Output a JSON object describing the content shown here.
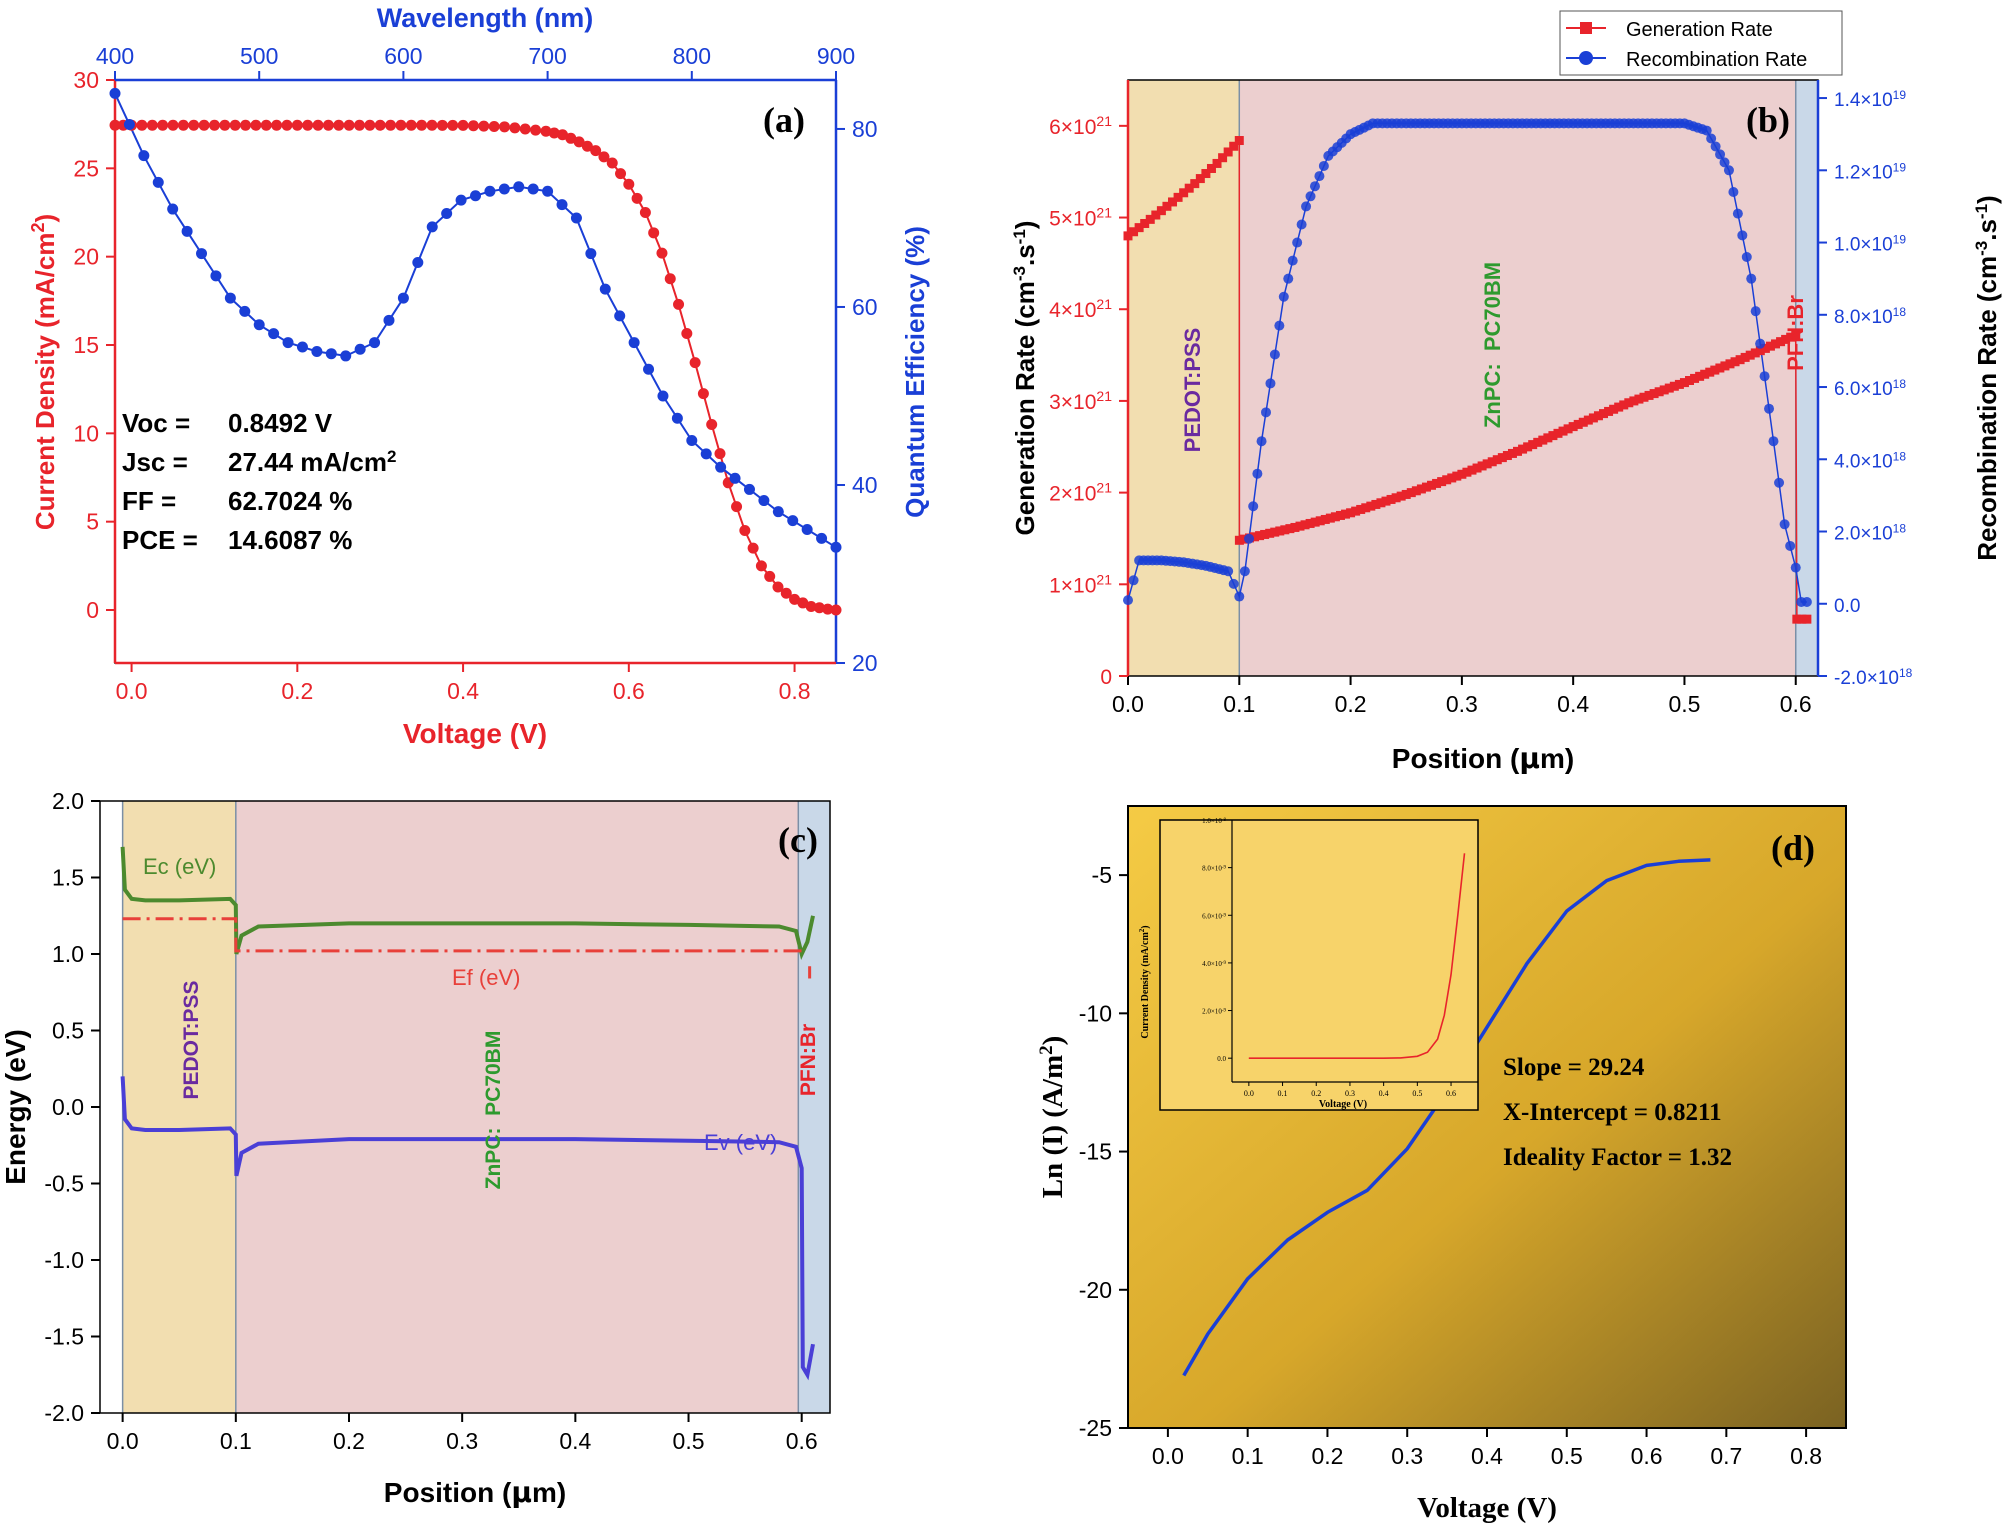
{
  "chart_data": [
    {
      "panel": "(a)",
      "type": "scatter",
      "xlabel": "Voltage (V)",
      "ylabel_left": "Current Density (mA/cm2)",
      "ylabel_right": "Quantum Efficiency (%)",
      "xlabel_top": "Wavelength (nm)",
      "xlim": [
        -0.02,
        0.85
      ],
      "ylim": [
        -3,
        30
      ],
      "ylim_right": [
        20,
        85.5
      ],
      "xlim_top": [
        400,
        900
      ],
      "x_ticks": [
        "0.0",
        "0.2",
        "0.4",
        "0.6",
        "0.8"
      ],
      "y_ticks": [
        "0",
        "5",
        "10",
        "15",
        "20",
        "25",
        "30"
      ],
      "y_right_ticks": [
        "20",
        "40",
        "60",
        "80"
      ],
      "x_top_ticks": [
        "400",
        "500",
        "600",
        "700",
        "800",
        "900"
      ],
      "colors": {
        "jv": "#e8242b",
        "qe": "#1a3fd6",
        "left_axis": "#e8242b",
        "right_axis": "#1a3fd6",
        "top_axis": "#1a3fd6"
      },
      "series": [
        {
          "name": "J-V",
          "axis": "bottom-left",
          "x": [
            -0.02,
            0.0,
            0.05,
            0.1,
            0.15,
            0.2,
            0.25,
            0.3,
            0.35,
            0.4,
            0.45,
            0.5,
            0.52,
            0.54,
            0.56,
            0.58,
            0.6,
            0.62,
            0.64,
            0.66,
            0.68,
            0.7,
            0.72,
            0.74,
            0.76,
            0.78,
            0.8,
            0.82,
            0.84,
            0.85
          ],
          "y": [
            27.44,
            27.44,
            27.44,
            27.44,
            27.44,
            27.44,
            27.44,
            27.44,
            27.44,
            27.43,
            27.35,
            27.1,
            26.9,
            26.5,
            26.0,
            25.3,
            24.1,
            22.5,
            20.2,
            17.3,
            14.0,
            10.5,
            7.2,
            4.5,
            2.5,
            1.3,
            0.6,
            0.2,
            0.05,
            0.0
          ]
        },
        {
          "name": "Quantum Efficiency",
          "axis": "top-right",
          "x": [
            400,
            420,
            440,
            460,
            480,
            500,
            520,
            540,
            560,
            580,
            600,
            620,
            640,
            660,
            680,
            700,
            720,
            740,
            760,
            780,
            800,
            820,
            840,
            860,
            880,
            900
          ],
          "y": [
            84,
            77,
            71,
            66,
            61,
            58,
            56,
            55,
            54.5,
            56,
            61,
            69,
            72,
            73,
            73.5,
            73,
            70,
            62,
            56,
            50,
            45,
            42,
            39.5,
            37,
            35,
            33
          ]
        }
      ],
      "annotations": [
        {
          "label": "Voc =",
          "value": "0.8492 V"
        },
        {
          "label": "Jsc =",
          "value": "27.44 mA/cm",
          "sup": "2"
        },
        {
          "label": "FF =",
          "value": "62.7024 %"
        },
        {
          "label": "PCE =",
          "value": "14.6087 %"
        }
      ]
    },
    {
      "panel": "(b)",
      "type": "scatter",
      "xlabel": "Position (μm)",
      "ylabel_left": "Generation Rate (cm-3.s-1)",
      "ylabel_right": "Recombination Rate (cm-3.s-1)",
      "xlim": [
        0.0,
        0.62
      ],
      "ylim": [
        0,
        6.5e+21
      ],
      "ylim_right": [
        -2e+18,
        1.45e+19
      ],
      "x_ticks": [
        "0.0",
        "0.1",
        "0.2",
        "0.3",
        "0.4",
        "0.5",
        "0.6"
      ],
      "y_ticks": [
        {
          "m": "0",
          "e": ""
        },
        {
          "m": "1×10",
          "e": "21"
        },
        {
          "m": "2×10",
          "e": "21"
        },
        {
          "m": "3×10",
          "e": "21"
        },
        {
          "m": "4×10",
          "e": "21"
        },
        {
          "m": "5×10",
          "e": "21"
        },
        {
          "m": "6×10",
          "e": "21"
        }
      ],
      "y_right_ticks": [
        {
          "m": "-2.0×10",
          "e": "18"
        },
        {
          "m": "0.0",
          "e": ""
        },
        {
          "m": "2.0×10",
          "e": "18"
        },
        {
          "m": "4.0×10",
          "e": "18"
        },
        {
          "m": "6.0×10",
          "e": "18"
        },
        {
          "m": "8.0×10",
          "e": "18"
        },
        {
          "m": "1.0×10",
          "e": "19"
        },
        {
          "m": "1.2×10",
          "e": "19"
        },
        {
          "m": "1.4×10",
          "e": "19"
        }
      ],
      "legend": [
        "Generation Rate",
        "Recombination Rate"
      ],
      "legend_position": "top-right",
      "layers": [
        "PEDOT:PSS",
        "ZnPC:  PC70BM",
        "PFN:Br"
      ],
      "colors": {
        "generation": "#e8242b",
        "recombination": "#1a3fd6",
        "pedot": "#f2deb0",
        "active": "#eccfcf",
        "pfn": "#c9d8e8",
        "left_axis": "#e8242b",
        "right_axis": "#1a3fd6"
      },
      "series": [
        {
          "name": "Generation Rate",
          "axis": "left",
          "x": [
            0.0,
            0.02,
            0.04,
            0.06,
            0.08,
            0.1,
            0.1001,
            0.15,
            0.2,
            0.25,
            0.3,
            0.35,
            0.4,
            0.45,
            0.5,
            0.55,
            0.6,
            0.601,
            0.61
          ],
          "y": [
            4.8e+21,
            4.98e+21,
            5.17e+21,
            5.37e+21,
            5.59e+21,
            5.84e+21,
            1.48e+21,
            1.62e+21,
            1.78e+21,
            1.98e+21,
            2.2e+21,
            2.45e+21,
            2.72e+21,
            2.98e+21,
            3.2e+21,
            3.45e+21,
            3.72e+21,
            6.2e+20,
            6.2e+20
          ]
        },
        {
          "name": "Recombination Rate",
          "axis": "right",
          "x": [
            0.0,
            0.01,
            0.03,
            0.05,
            0.07,
            0.09,
            0.1,
            0.105,
            0.12,
            0.14,
            0.16,
            0.18,
            0.2,
            0.22,
            0.25,
            0.3,
            0.35,
            0.4,
            0.45,
            0.5,
            0.52,
            0.54,
            0.56,
            0.58,
            0.59,
            0.6,
            0.605,
            0.61
          ],
          "y": [
            1e+17,
            1.2e+18,
            1.2e+18,
            1.15e+18,
            1.05e+18,
            9e+17,
            2e+17,
            9e+17,
            4.5e+18,
            8.5e+18,
            1.1e+19,
            1.24e+19,
            1.3e+19,
            1.33e+19,
            1.33e+19,
            1.33e+19,
            1.33e+19,
            1.33e+19,
            1.33e+19,
            1.33e+19,
            1.31e+19,
            1.2e+19,
            9e+18,
            4.5e+18,
            2.2e+18,
            1e+18,
            5e+16,
            5e+16
          ]
        }
      ]
    },
    {
      "panel": "(c)",
      "type": "line",
      "xlabel": "Position (μm)",
      "ylabel": "Energy (eV)",
      "xlim": [
        -0.02,
        0.625
      ],
      "ylim": [
        -2.0,
        2.0
      ],
      "x_ticks": [
        "0.0",
        "0.1",
        "0.2",
        "0.3",
        "0.4",
        "0.5",
        "0.6"
      ],
      "y_ticks": [
        "-2.0",
        "-1.5",
        "-1.0",
        "-0.5",
        "0.0",
        "0.5",
        "1.0",
        "1.5",
        "2.0"
      ],
      "layers": [
        "PEDOT:PSS",
        "ZnPC:  PC70BM",
        "PFN:Br"
      ],
      "curve_labels": [
        "Ec (eV)",
        "Ef (eV)",
        "Ev (eV)"
      ],
      "colors": {
        "ec": "#4c8a2e",
        "ef": "#e8403a",
        "ev": "#4a3fd6",
        "pedot": "#f2deb0",
        "active": "#eccfcf",
        "pfn": "#c9d8e8"
      },
      "series": [
        {
          "name": "Ec (eV)",
          "x": [
            0.0,
            0.002,
            0.008,
            0.02,
            0.05,
            0.095,
            0.1,
            0.1005,
            0.105,
            0.12,
            0.2,
            0.3,
            0.4,
            0.5,
            0.58,
            0.595,
            0.6,
            0.605,
            0.61
          ],
          "y": [
            1.7,
            1.42,
            1.36,
            1.35,
            1.35,
            1.36,
            1.32,
            1.0,
            1.12,
            1.18,
            1.2,
            1.2,
            1.2,
            1.19,
            1.18,
            1.15,
            1.0,
            1.08,
            1.25
          ]
        },
        {
          "name": "Ef (eV)",
          "x": [
            0.0,
            0.1,
            0.1,
            0.6
          ],
          "y": [
            1.23,
            1.23,
            1.02,
            1.02
          ]
        },
        {
          "name": "Ev (eV)",
          "x": [
            0.0,
            0.002,
            0.008,
            0.02,
            0.05,
            0.095,
            0.1,
            0.1005,
            0.105,
            0.12,
            0.2,
            0.3,
            0.4,
            0.5,
            0.58,
            0.595,
            0.6,
            0.601,
            0.605,
            0.61
          ],
          "y": [
            0.2,
            -0.08,
            -0.14,
            -0.15,
            -0.15,
            -0.14,
            -0.18,
            -0.45,
            -0.3,
            -0.24,
            -0.21,
            -0.21,
            -0.21,
            -0.22,
            -0.23,
            -0.26,
            -0.4,
            -1.7,
            -1.75,
            -1.55
          ]
        }
      ]
    },
    {
      "panel": "(d)",
      "type": "line",
      "xlabel": "Voltage (V)",
      "ylabel": "Ln (I) (A/m2)",
      "xlim": [
        -0.05,
        0.85
      ],
      "ylim": [
        -25,
        -2.5
      ],
      "x_ticks": [
        "0.0",
        "0.1",
        "0.2",
        "0.3",
        "0.4",
        "0.5",
        "0.6",
        "0.7",
        "0.8"
      ],
      "y_ticks": [
        "-25",
        "-20",
        "-15",
        "-10",
        "-5"
      ],
      "colors": {
        "curve": "#1a3fd6",
        "inset_curve": "#e8242b",
        "bg_light": "#f5c83c",
        "bg_dark": "#7a6222"
      },
      "series": [
        {
          "name": "Ln(I)",
          "x": [
            0.02,
            0.05,
            0.1,
            0.15,
            0.2,
            0.25,
            0.3,
            0.35,
            0.4,
            0.45,
            0.5,
            0.55,
            0.6,
            0.64,
            0.68
          ],
          "y": [
            -23.1,
            -21.6,
            -19.6,
            -18.2,
            -17.2,
            -16.4,
            -14.9,
            -12.8,
            -10.5,
            -8.2,
            -6.3,
            -5.2,
            -4.65,
            -4.5,
            -4.45
          ]
        }
      ],
      "annotations": [
        "Slope = 29.24",
        "X-Intercept = 0.8211",
        "Ideality Factor = 1.32"
      ],
      "inset": {
        "type": "line",
        "xlabel": "Voltage (V)",
        "ylabel": "Current Density (mA/cm2)",
        "xlim": [
          -0.05,
          0.68
        ],
        "ylim": [
          -1e-09,
          1e-08
        ],
        "x_ticks": [
          "0.0",
          "0.1",
          "0.2",
          "0.3",
          "0.4",
          "0.5",
          "0.6"
        ],
        "y_ticks": [
          {
            "m": "0.0",
            "e": ""
          },
          {
            "m": "2.0×10",
            "e": "-9"
          },
          {
            "m": "4.0×10",
            "e": "-9"
          },
          {
            "m": "6.0×10",
            "e": "-9"
          },
          {
            "m": "8.0×10",
            "e": "-9"
          },
          {
            "m": "1.0×10",
            "e": "-8"
          }
        ],
        "x": [
          0.0,
          0.1,
          0.2,
          0.3,
          0.4,
          0.45,
          0.5,
          0.53,
          0.56,
          0.58,
          0.6,
          0.62,
          0.64
        ],
        "y": [
          0.0,
          0.0,
          0.0,
          0.0,
          0.0,
          1e-11,
          8e-11,
          2.5e-10,
          8e-10,
          1.8e-09,
          3.5e-09,
          6e-09,
          8.6e-09
        ]
      }
    }
  ]
}
